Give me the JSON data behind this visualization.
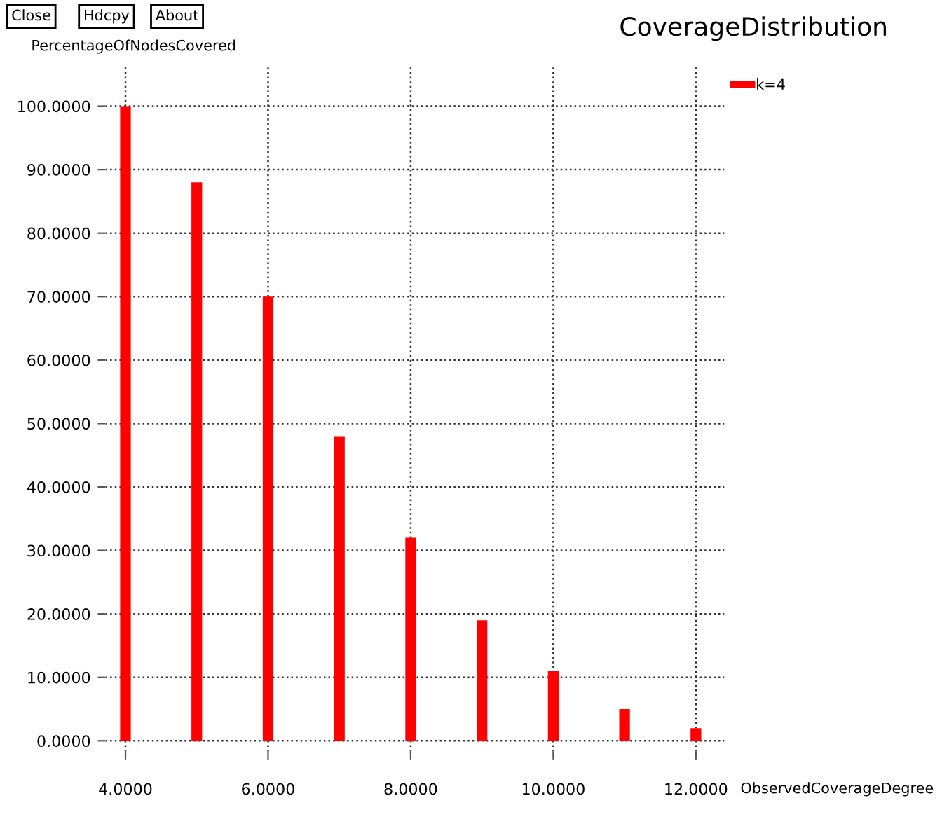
{
  "chart_data": {
    "type": "bar",
    "title": "CoverageDistribution",
    "xlabel": "ObservedCoverageDegree",
    "ylabel": "PercentageOfNodesCovered",
    "annotations": [
      "Close",
      "Hdcpy",
      "About"
    ],
    "x": [
      4,
      5,
      6,
      7,
      8,
      9,
      10,
      11,
      12
    ],
    "series": [
      {
        "name": "k=4",
        "color": "#ff0000",
        "values": [
          100,
          88,
          70,
          48,
          32,
          19,
          11,
          5,
          2
        ]
      }
    ],
    "xlim": [
      3.72,
      12.4
    ],
    "ylim": [
      -1.7,
      106.3
    ],
    "xticks": [
      {
        "value": 4,
        "label": "4.0000"
      },
      {
        "value": 6,
        "label": "6.0000"
      },
      {
        "value": 8,
        "label": "8.0000"
      },
      {
        "value": 10,
        "label": "10.0000"
      },
      {
        "value": 12,
        "label": "12.0000"
      }
    ],
    "yticks": [
      {
        "value": 0,
        "label": "0.0000"
      },
      {
        "value": 10,
        "label": "10.0000"
      },
      {
        "value": 20,
        "label": "20.0000"
      },
      {
        "value": 30,
        "label": "30.0000"
      },
      {
        "value": 40,
        "label": "40.0000"
      },
      {
        "value": 50,
        "label": "50.0000"
      },
      {
        "value": 60,
        "label": "60.0000"
      },
      {
        "value": 70,
        "label": "70.0000"
      },
      {
        "value": 80,
        "label": "80.0000"
      },
      {
        "value": 90,
        "label": "90.0000"
      },
      {
        "value": 100,
        "label": "100.0000"
      }
    ],
    "grid": true,
    "legend": "top right"
  }
}
